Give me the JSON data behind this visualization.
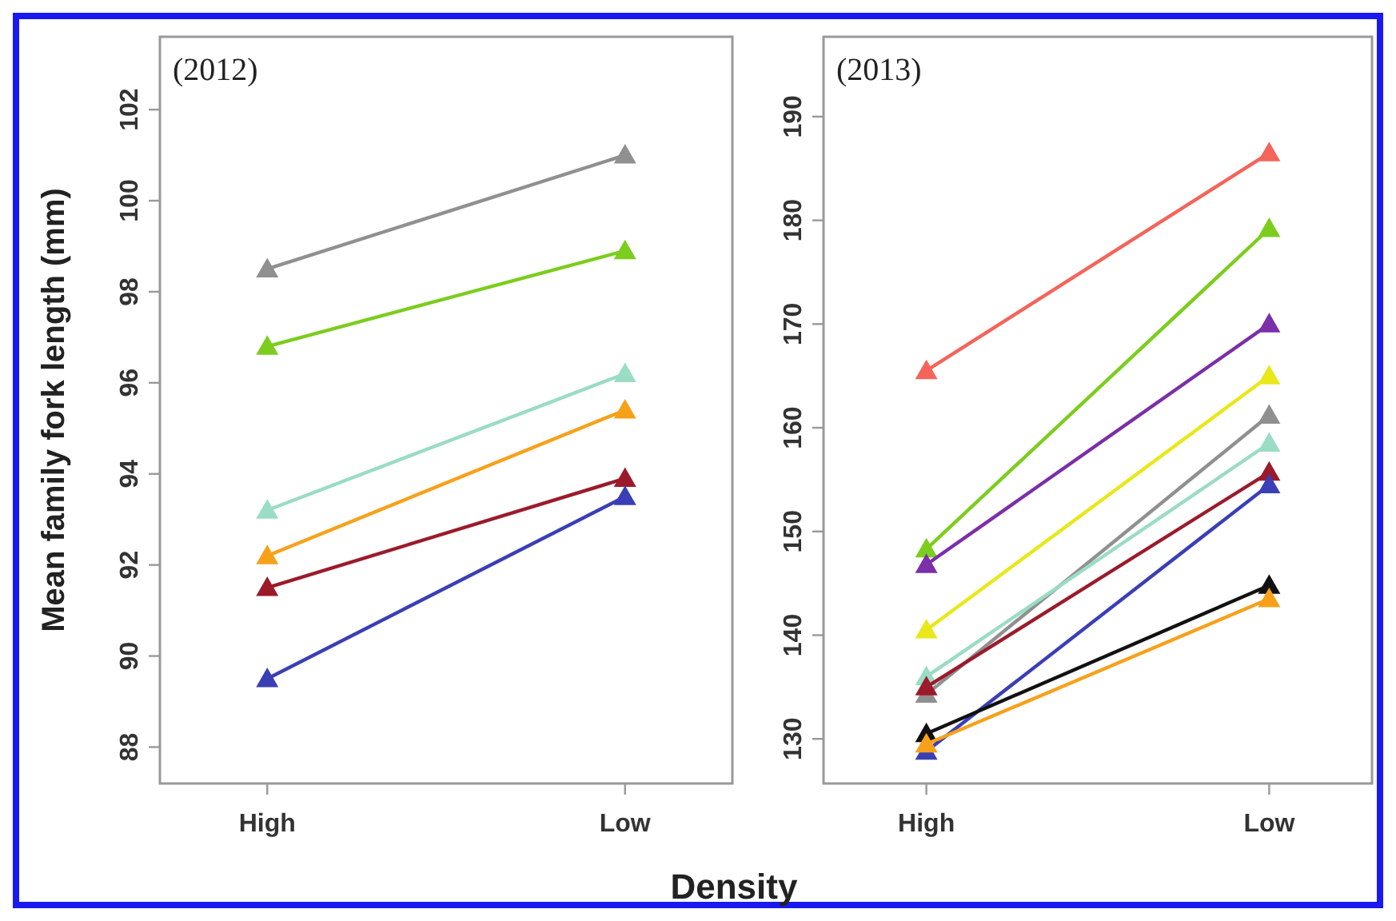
{
  "chart_data": [
    {
      "type": "line",
      "title": "(2012)",
      "xlabel": "Density",
      "ylabel": "Mean family fork length (mm)",
      "categories": [
        "High",
        "Low"
      ],
      "marker": "triangle",
      "grid": false,
      "ylim": [
        87.2,
        103.6
      ],
      "yticks": [
        88,
        90,
        92,
        94,
        96,
        98,
        100,
        102
      ],
      "series": [
        {
          "color": "#909090",
          "values": [
            98.5,
            101.0
          ]
        },
        {
          "color": "#7ccd1e",
          "values": [
            96.8,
            98.9
          ]
        },
        {
          "color": "#9adcc4",
          "values": [
            93.2,
            96.2
          ]
        },
        {
          "color": "#f7a11a",
          "values": [
            92.2,
            95.4
          ]
        },
        {
          "color": "#9b1b2b",
          "values": [
            91.5,
            93.9
          ]
        },
        {
          "color": "#3a3fb5",
          "values": [
            89.5,
            93.5
          ]
        }
      ]
    },
    {
      "type": "line",
      "title": "(2013)",
      "categories": [
        "High",
        "Low"
      ],
      "marker": "triangle",
      "grid": false,
      "ylim": [
        125.7,
        197.7
      ],
      "yticks": [
        130,
        140,
        150,
        160,
        170,
        180,
        190
      ],
      "series": [
        {
          "color": "#f4645a",
          "values": [
            165.5,
            186.5
          ]
        },
        {
          "color": "#7ccd1e",
          "values": [
            148.3,
            179.2
          ]
        },
        {
          "color": "#7b2fa8",
          "values": [
            146.8,
            170.0
          ]
        },
        {
          "color": "#e8e81a",
          "values": [
            140.5,
            165.0
          ]
        },
        {
          "color": "#909090",
          "values": [
            134.3,
            161.2
          ]
        },
        {
          "color": "#9adcc4",
          "values": [
            136.0,
            158.5
          ]
        },
        {
          "color": "#9b1b2b",
          "values": [
            135.0,
            155.7
          ]
        },
        {
          "color": "#3a3fb5",
          "values": [
            128.8,
            154.5
          ]
        },
        {
          "color": "#111111",
          "values": [
            130.5,
            144.8
          ]
        },
        {
          "color": "#f7a11a",
          "values": [
            129.5,
            143.5
          ]
        }
      ]
    }
  ]
}
